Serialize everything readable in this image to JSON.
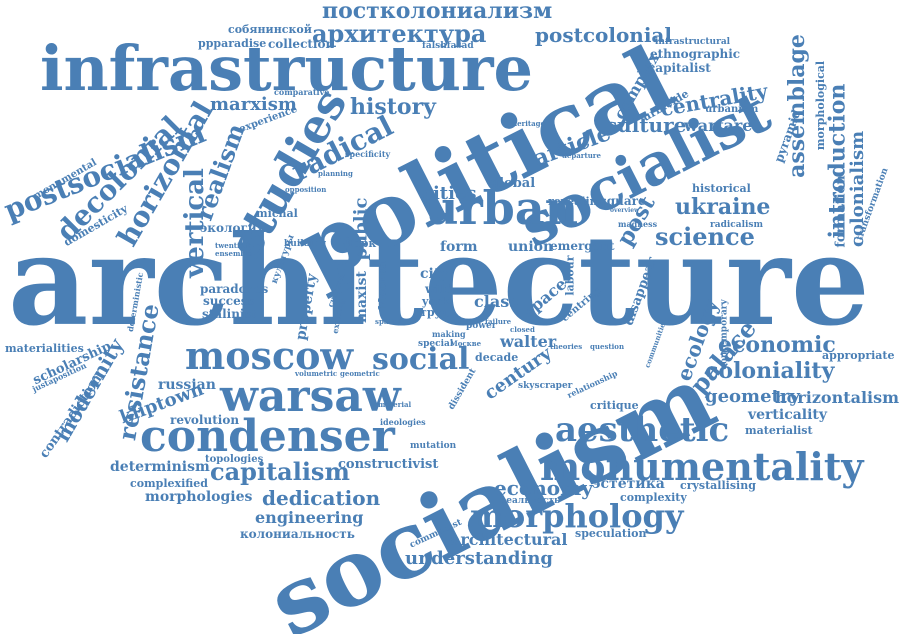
{
  "cloud": {
    "color": "#4a7fb5",
    "background": "#ffffff",
    "words": {
      "architecture": "architecture",
      "socialism": "socialism",
      "political": "political",
      "infrastructure": "infrastructure",
      "socialist": "socialist",
      "urban": "urban",
      "studies": "studies",
      "condenser": "condenser",
      "warsaw": "warsaw",
      "moscow": "moscow",
      "monumentality": "monumentality",
      "aesthetic": "aesthetic",
      "morphology": "morphology",
      "social": "social",
      "capitalism": "capitalism",
      "postcolonialism_ru": "постколониализм",
      "architecture_ru": "архитектура",
      "postcolonial": "postcolonial",
      "postsocialism": "postsocialism",
      "decolonial": "decolonial",
      "horizontal": "horizontal",
      "vertical": "vertical",
      "radical": "radical",
      "realism": "realism",
      "marxism": "marxism",
      "history": "history",
      "cities": "cities",
      "article": "article",
      "culture": "culture",
      "centrality": "centrality",
      "warfare": "warfare",
      "assemblage": "assemblage",
      "introduction": "introduction",
      "colonialism": "colonialism",
      "complex": "complex",
      "ukraine": "ukraine",
      "science": "science",
      "post": "post",
      "public": "public",
      "economic": "economic",
      "coloniality": "coloniality",
      "ecology": "ecology",
      "palace": "palace",
      "resistance": "resistance",
      "modernity": "modernity",
      "kliptown": "kliptown",
      "century": "century",
      "economy": "economy",
      "dedication": "dedication",
      "engineering": "engineering",
      "understanding": "understanding",
      "architectural": "architectural",
      "geometry": "geometry",
      "horizontalism": "horizontalism",
      "verticality": "verticality",
      "materialist": "materialist",
      "capitalist": "capitalist",
      "ethnographic": "ethnographic",
      "infrastructural": "infrastructural",
      "urbicide": "urbicide",
      "urbanism": "urbanism",
      "collection": "collection",
      "sobyaninskoy": "собянинской",
      "ppparadise": "ppparadise",
      "falshfasad": "falshfasad",
      "russian": "russian",
      "revolution": "revolution",
      "determinism": "determinism",
      "complexified": "complexified",
      "morphologies": "morphologies",
      "topologies": "topologies",
      "constructivist": "constructivist",
      "kolonialnost": "колониальность",
      "speculation": "speculation",
      "complexity": "complexity",
      "estetika": "эстетика",
      "crystallising": "crystallising",
      "critique": "critique",
      "square": "square",
      "global": "global",
      "historical": "historical",
      "radicalism": "radicalism",
      "formation": "formation",
      "transformation": "transformation",
      "pyramid": "pyramid",
      "morphological": "morphological",
      "contemporary": "contemporary",
      "disappear": "disappear",
      "appropriate": "appropriate",
      "scholarship": "scholarship",
      "materialities": "materialities",
      "contradiction": "contradiction",
      "paradoxes": "paradoxes",
      "success": "success",
      "stalinist": "stalinist",
      "property": "property",
      "maxist": "maxist",
      "emergent": "emergent",
      "union": "union",
      "form": "form",
      "class": "class",
      "space": "space",
      "walter": "walter",
      "decade": "decade",
      "labour": "labour",
      "centring": "centring",
      "michal": "michal",
      "ekologiya": "экология",
      "domesticity": "domesticity",
      "monumental": "monumental",
      "experience": "experience",
      "comparative": "comparative",
      "specificity": "specificity",
      "revealing": "revealing",
      "overview": "overview",
      "madness": "madness",
      "heritage": "heritage",
      "departure": "departure",
      "building": "building",
      "twentieth": "twentieth",
      "ensemble": "ensemble",
      "york_ru": "Йорк",
      "moskva_ru": "Москва",
      "kultury": "культуры",
      "city": "city",
      "wild": "wild",
      "york": "york",
      "trud": "труд",
      "power": "power",
      "making": "making",
      "special": "special",
      "realnost": "реальность",
      "communist": "communist",
      "skyscraper": "skyscraper",
      "mutation": "mutation",
      "ideologies": "ideologies",
      "material": "material",
      "dissident": "dissident",
      "relationship": "relationship",
      "question": "question",
      "justaposition": "justaposition",
      "deterministic": "deterministic",
      "volumetric": "volumetric",
      "geometric": "geometric",
      "spatial": "spatial",
      "existing": "existing",
      "cultural": "cultural",
      "opposition": "opposition",
      "planning": "planning",
      "communities": "communities",
      "theories": "theories",
      "failure": "failure",
      "closed": "closed",
      "moskve": "Москве"
    }
  }
}
